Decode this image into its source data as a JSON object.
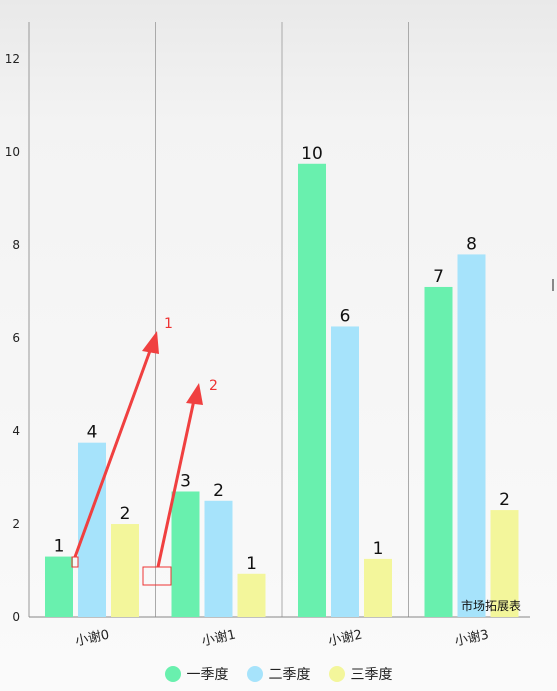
{
  "chart_data": {
    "type": "bar",
    "categories": [
      "小谢0",
      "小谢1",
      "小谢2",
      "小谢3"
    ],
    "series": [
      {
        "name": "一季度",
        "values": [
          1,
          3,
          10,
          7
        ],
        "color": "#69f0ae"
      },
      {
        "name": "二季度",
        "values": [
          4,
          2,
          6,
          8
        ],
        "color": "#a6e3fb"
      },
      {
        "name": "三季度",
        "values": [
          2,
          1,
          1,
          2
        ],
        "color": "#f3f69b"
      }
    ],
    "bar_heights": [
      [
        1.3,
        2.7,
        9.75,
        7.1
      ],
      [
        3.75,
        2.5,
        6.25,
        7.8
      ],
      [
        2.0,
        0.93,
        1.25,
        2.3
      ]
    ],
    "yticks": [
      0,
      2,
      4,
      6,
      8,
      10,
      12
    ],
    "ylim": [
      0,
      12.8
    ],
    "description": "市场拓展表",
    "grid": "vertical",
    "legend_position": "bottom",
    "annotations": [
      {
        "label": "1",
        "color": "#ee3333"
      },
      {
        "label": "2",
        "color": "#ee3333"
      }
    ]
  }
}
